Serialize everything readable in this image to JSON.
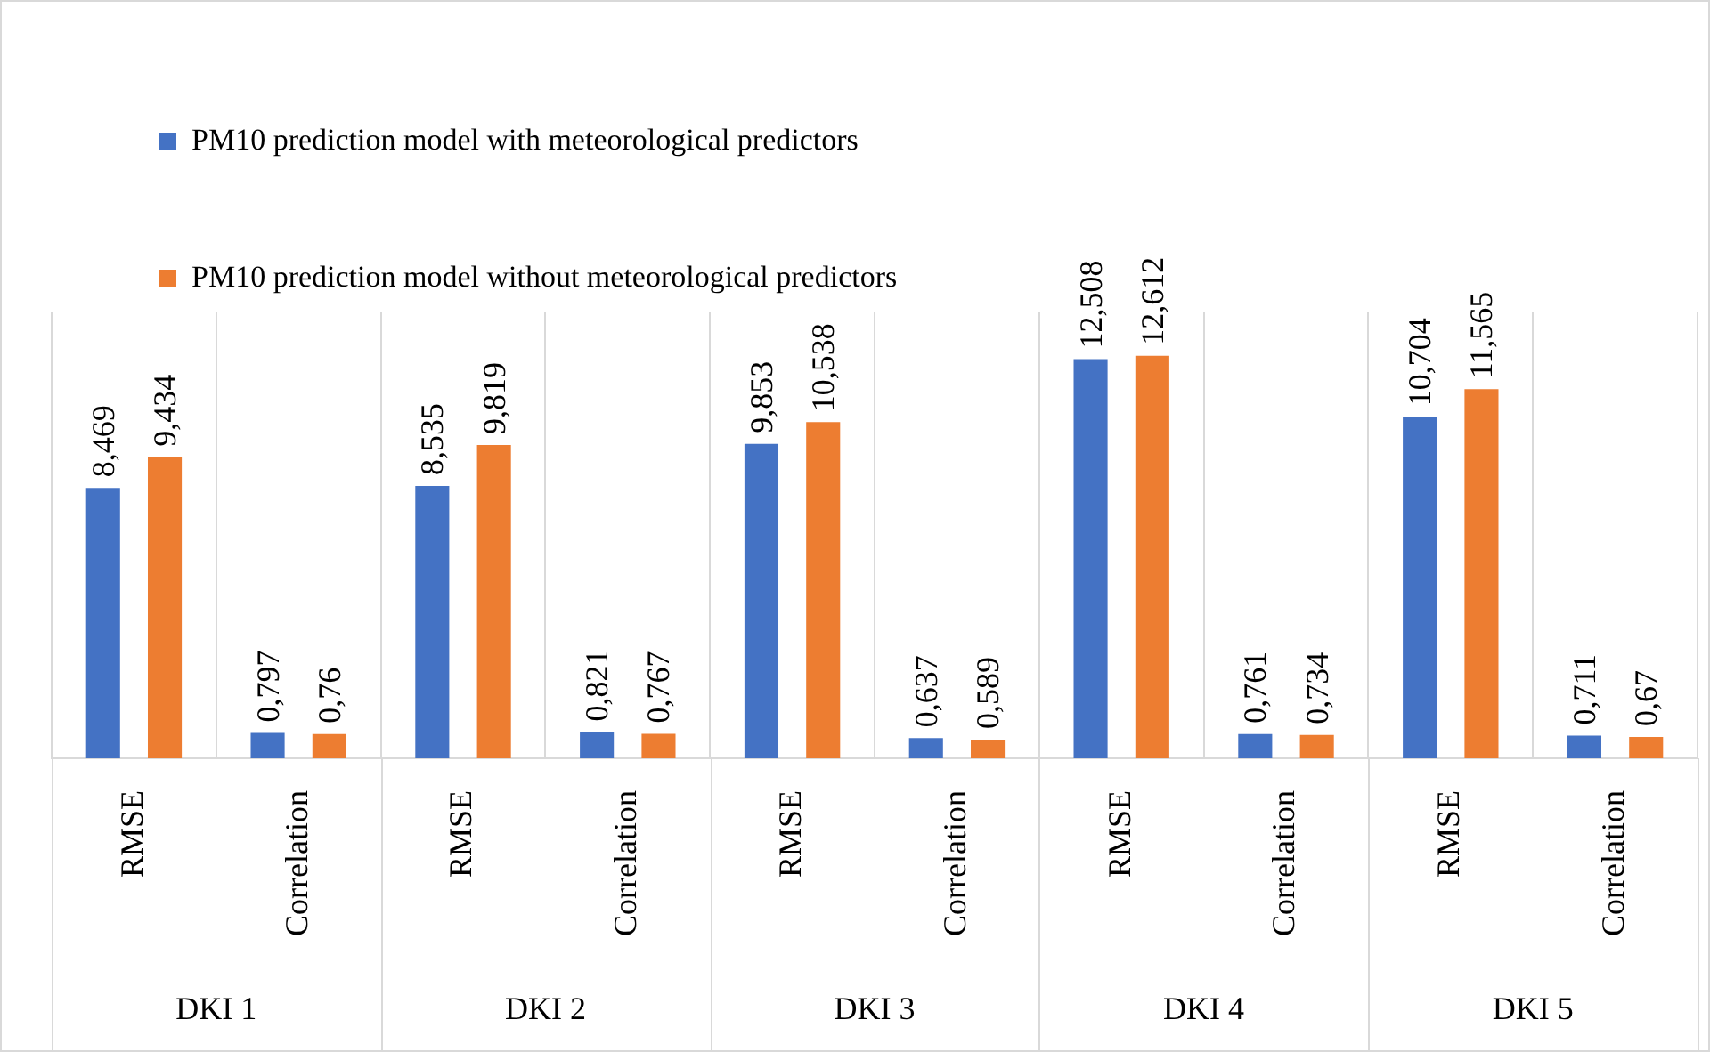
{
  "chart_data": {
    "type": "bar",
    "categories": [
      "RMSE",
      "Correlation",
      "RMSE",
      "Correlation",
      "RMSE",
      "Correlation",
      "RMSE",
      "Correlation",
      "RMSE",
      "Correlation"
    ],
    "series": [
      {
        "name": "PM10 prediction model with meteorological predictors",
        "color": "#4472c4",
        "values": [
          8.469,
          0.797,
          8.535,
          0.821,
          9.853,
          0.637,
          12.508,
          0.761,
          10.704,
          0.711
        ],
        "value_labels": [
          "8,469",
          "0,797",
          "8,535",
          "0,821",
          "9,853",
          "0,637",
          "12,508",
          "0,761",
          "10,704",
          "0,711"
        ]
      },
      {
        "name": "PM10 prediction model without meteorological predictors",
        "color": "#ed7d31",
        "values": [
          9.434,
          0.76,
          9.819,
          0.767,
          10.538,
          0.589,
          12.612,
          0.734,
          11.565,
          0.67
        ],
        "value_labels": [
          "9,434",
          "0,76",
          "9,819",
          "0,767",
          "10,538",
          "0,589",
          "12,612",
          "0,734",
          "11,565",
          "0,67"
        ]
      }
    ],
    "annotations": [
      "DKI 1",
      "DKI 2",
      "DKI 3",
      "DKI 4",
      "DKI 5"
    ],
    "grid": "x",
    "legend": "top left"
  }
}
